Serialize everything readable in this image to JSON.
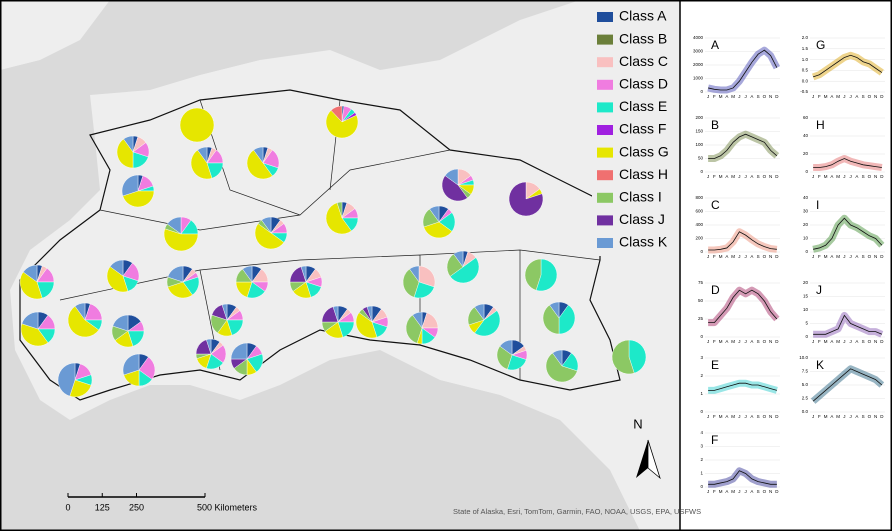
{
  "legend": {
    "classes": [
      {
        "name": "Class A",
        "color": "#1f4e9c"
      },
      {
        "name": "Class B",
        "color": "#6b7f3a"
      },
      {
        "name": "Class C",
        "color": "#f9c0c0"
      },
      {
        "name": "Class D",
        "color": "#f07ce0"
      },
      {
        "name": "Class E",
        "color": "#1de9c9"
      },
      {
        "name": "Class F",
        "color": "#a020e0"
      },
      {
        "name": "Class G",
        "color": "#e6e600"
      },
      {
        "name": "Class H",
        "color": "#f07070"
      },
      {
        "name": "Class I",
        "color": "#8cc864"
      },
      {
        "name": "Class J",
        "color": "#7030a0"
      },
      {
        "name": "Class K",
        "color": "#6a9ad4"
      }
    ]
  },
  "map": {
    "pies": [
      [
        0,
        0,
        0,
        0,
        0,
        0,
        100,
        0,
        0,
        0,
        0
      ],
      [
        2,
        0,
        0,
        8,
        5,
        3,
        70,
        12,
        0,
        0,
        0
      ],
      [
        5,
        0,
        10,
        15,
        20,
        0,
        40,
        0,
        0,
        0,
        10
      ],
      [
        5,
        0,
        5,
        15,
        20,
        0,
        45,
        0,
        0,
        0,
        10
      ],
      [
        5,
        0,
        5,
        20,
        10,
        0,
        50,
        0,
        0,
        0,
        10
      ],
      [
        5,
        0,
        0,
        15,
        5,
        0,
        45,
        0,
        0,
        0,
        30
      ],
      [
        0,
        0,
        15,
        5,
        5,
        0,
        10,
        0,
        5,
        45,
        15
      ],
      [
        0,
        0,
        15,
        0,
        0,
        0,
        5,
        0,
        0,
        80,
        0
      ],
      [
        0,
        0,
        0,
        10,
        15,
        0,
        55,
        0,
        5,
        0,
        15
      ],
      [
        10,
        0,
        5,
        10,
        10,
        0,
        50,
        0,
        5,
        0,
        10
      ],
      [
        5,
        0,
        10,
        10,
        15,
        0,
        55,
        0,
        5,
        0,
        0
      ],
      [
        10,
        0,
        0,
        5,
        20,
        0,
        35,
        0,
        20,
        0,
        10
      ],
      [
        5,
        0,
        5,
        15,
        20,
        0,
        40,
        0,
        0,
        0,
        15
      ],
      [
        10,
        0,
        0,
        20,
        15,
        0,
        40,
        0,
        0,
        0,
        15
      ],
      [
        10,
        0,
        5,
        5,
        20,
        0,
        30,
        0,
        10,
        0,
        20
      ],
      [
        10,
        0,
        15,
        10,
        20,
        0,
        20,
        0,
        15,
        0,
        10
      ],
      [
        10,
        0,
        10,
        10,
        15,
        0,
        20,
        0,
        10,
        20,
        5
      ],
      [
        0,
        0,
        30,
        0,
        25,
        0,
        0,
        0,
        35,
        0,
        10
      ],
      [
        5,
        0,
        10,
        0,
        50,
        0,
        0,
        0,
        25,
        0,
        10
      ],
      [
        0,
        0,
        0,
        0,
        55,
        0,
        0,
        0,
        45,
        0,
        0
      ],
      [
        10,
        0,
        0,
        15,
        15,
        0,
        40,
        0,
        0,
        0,
        20
      ],
      [
        5,
        0,
        0,
        20,
        10,
        0,
        55,
        0,
        0,
        0,
        10
      ],
      [
        15,
        0,
        0,
        10,
        20,
        0,
        20,
        0,
        15,
        0,
        20
      ],
      [
        10,
        0,
        5,
        10,
        20,
        0,
        15,
        0,
        20,
        15,
        5
      ],
      [
        10,
        0,
        5,
        10,
        20,
        0,
        20,
        0,
        10,
        20,
        5
      ],
      [
        10,
        0,
        10,
        10,
        15,
        0,
        40,
        0,
        5,
        5,
        5
      ],
      [
        5,
        0,
        20,
        10,
        15,
        0,
        5,
        0,
        35,
        0,
        10
      ],
      [
        10,
        0,
        5,
        0,
        45,
        0,
        10,
        0,
        20,
        0,
        10
      ],
      [
        10,
        0,
        0,
        0,
        40,
        0,
        0,
        0,
        40,
        0,
        10
      ],
      [
        10,
        0,
        5,
        20,
        20,
        0,
        15,
        0,
        5,
        20,
        5
      ],
      [
        10,
        0,
        0,
        10,
        20,
        0,
        10,
        0,
        15,
        10,
        25
      ],
      [
        10,
        0,
        0,
        25,
        15,
        0,
        20,
        0,
        0,
        0,
        30
      ],
      [
        15,
        0,
        5,
        10,
        25,
        0,
        0,
        0,
        30,
        0,
        15
      ],
      [
        10,
        0,
        0,
        0,
        20,
        0,
        0,
        0,
        60,
        0,
        10
      ],
      [
        0,
        0,
        0,
        0,
        45,
        0,
        0,
        0,
        55,
        0,
        0
      ],
      [
        5,
        0,
        0,
        15,
        10,
        0,
        25,
        0,
        0,
        0,
        45
      ]
    ],
    "north": "N",
    "scale": {
      "ticks": [
        0,
        125,
        250
      ],
      "unit_label": "500 Kilometers"
    },
    "attribution": "State of Alaska, Esri, TomTom, Garmin, FAO, NOAA, USGS, EPA, USFWS"
  },
  "months": [
    "J",
    "F",
    "M",
    "A",
    "M",
    "J",
    "J",
    "A",
    "S",
    "O",
    "N",
    "D"
  ],
  "panels": [
    {
      "label": "A",
      "color": "#3b3fb0",
      "ylim": [
        0,
        4000
      ],
      "yticks": [
        0,
        1000,
        2000,
        3000,
        4000
      ],
      "values": [
        300,
        200,
        150,
        150,
        300,
        800,
        1500,
        2200,
        2800,
        3100,
        2700,
        1800
      ]
    },
    {
      "label": "B",
      "color": "#6b7f3a",
      "ylim": [
        0,
        200
      ],
      "yticks": [
        0,
        50,
        100,
        150,
        200
      ],
      "values": [
        50,
        50,
        60,
        80,
        110,
        130,
        140,
        130,
        120,
        110,
        80,
        60
      ]
    },
    {
      "label": "C",
      "color": "#e8826a",
      "ylim": [
        0,
        800
      ],
      "yticks": [
        0,
        200,
        400,
        600,
        800
      ],
      "values": [
        30,
        30,
        40,
        60,
        150,
        300,
        250,
        180,
        120,
        80,
        50,
        40
      ]
    },
    {
      "label": "D",
      "color": "#a0205a",
      "ylim": [
        0,
        75
      ],
      "yticks": [
        0,
        25,
        50,
        75
      ],
      "values": [
        20,
        20,
        30,
        40,
        55,
        65,
        60,
        65,
        60,
        50,
        35,
        25
      ]
    },
    {
      "label": "E",
      "color": "#1ec8c8",
      "ylim": [
        0,
        3
      ],
      "yticks": [
        0,
        1,
        2,
        3
      ],
      "values": [
        1.2,
        1.2,
        1.3,
        1.4,
        1.5,
        1.6,
        1.6,
        1.5,
        1.5,
        1.4,
        1.3,
        1.2
      ]
    },
    {
      "label": "F",
      "color": "#2a2a90",
      "ylim": [
        0,
        4
      ],
      "yticks": [
        0,
        1,
        2,
        3,
        4
      ],
      "values": [
        0.2,
        0.2,
        0.3,
        0.4,
        0.6,
        1.2,
        1.0,
        0.6,
        0.4,
        0.3,
        0.2,
        0.2
      ]
    },
    {
      "label": "G",
      "color": "#d9a000",
      "ylim": [
        -0.5,
        2
      ],
      "yticks": [
        {
          "value": -0.5,
          "label": "-0.5"
        },
        {
          "value": 0,
          "label": "0.0"
        },
        {
          "value": 0.5,
          "label": "0.5"
        },
        {
          "value": 1,
          "label": "1.0"
        },
        {
          "value": 1.5,
          "label": "1.5"
        },
        {
          "value": 2,
          "label": "2.0"
        }
      ],
      "values": [
        0.2,
        0.3,
        0.5,
        0.7,
        0.9,
        1.1,
        1.2,
        1.1,
        0.9,
        0.8,
        0.6,
        0.4
      ]
    },
    {
      "label": "H",
      "color": "#e06060",
      "ylim": [
        0,
        60
      ],
      "yticks": [
        0,
        20,
        40,
        60
      ],
      "values": [
        5,
        5,
        6,
        8,
        12,
        15,
        12,
        10,
        8,
        7,
        6,
        5
      ]
    },
    {
      "label": "I",
      "color": "#3a8a2a",
      "ylim": [
        0,
        40
      ],
      "yticks": [
        0,
        10,
        20,
        30,
        40
      ],
      "values": [
        2,
        3,
        5,
        10,
        20,
        25,
        20,
        18,
        15,
        12,
        10,
        5
      ]
    },
    {
      "label": "J",
      "color": "#8050b0",
      "ylim": [
        0,
        20
      ],
      "yticks": [
        0,
        5,
        10,
        15,
        20
      ],
      "values": [
        1,
        1,
        1,
        2,
        3,
        8,
        5,
        4,
        3,
        2,
        2,
        1
      ]
    },
    {
      "label": "K",
      "color": "#1a5a7a",
      "ylim": [
        0,
        10
      ],
      "yticks": [
        {
          "value": 0,
          "label": "0.0"
        },
        {
          "value": 2.5,
          "label": "2.5"
        },
        {
          "value": 5,
          "label": "5.0"
        },
        {
          "value": 7.5,
          "label": "7.5"
        },
        {
          "value": 10,
          "label": "10.0"
        }
      ],
      "values": [
        2,
        3,
        4,
        5,
        6,
        7,
        8,
        7.5,
        7,
        6.5,
        6,
        5
      ]
    }
  ]
}
